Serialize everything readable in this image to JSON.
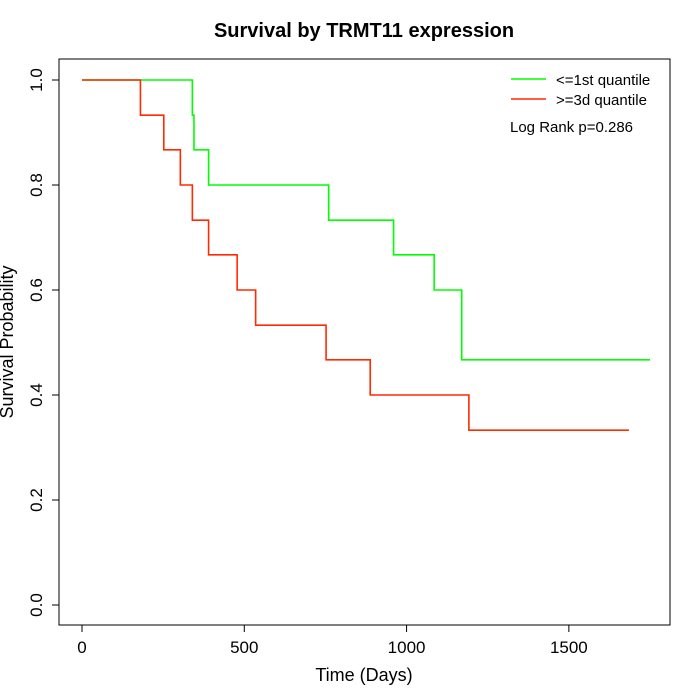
{
  "chart_data": {
    "type": "line",
    "step": true,
    "title": "Survival by TRMT11 expression",
    "xlabel": "Time (Days)",
    "ylabel": "Survival Probability",
    "xlim": [
      0,
      1750
    ],
    "ylim": [
      0,
      1
    ],
    "xticks": [
      0,
      500,
      1000,
      1500
    ],
    "yticks": [
      0.0,
      0.2,
      0.4,
      0.6,
      0.8,
      1.0
    ],
    "xtick_labels": [
      "0",
      "500",
      "1000",
      "1500"
    ],
    "ytick_labels": [
      "0.0",
      "0.2",
      "0.4",
      "0.6",
      "0.8",
      "1.0"
    ],
    "grid": false,
    "legend_position": "top-right",
    "annotation": "Log Rank p=0.286",
    "series": [
      {
        "name": "<=1st quantile",
        "color": "#00ff00",
        "x": [
          0,
          330,
          340,
          345,
          390,
          760,
          960,
          1085,
          1170,
          1750
        ],
        "y": [
          1.0,
          1.0,
          0.933,
          0.867,
          0.8,
          0.733,
          0.667,
          0.6,
          0.467,
          0.467
        ]
      },
      {
        "name": ">=3d quantile",
        "color": "#ff2a00",
        "x": [
          0,
          180,
          252,
          303,
          340,
          390,
          478,
          535,
          752,
          888,
          1192,
          1685
        ],
        "y": [
          1.0,
          0.933,
          0.867,
          0.8,
          0.733,
          0.667,
          0.6,
          0.533,
          0.467,
          0.4,
          0.333,
          0.333
        ]
      }
    ]
  }
}
